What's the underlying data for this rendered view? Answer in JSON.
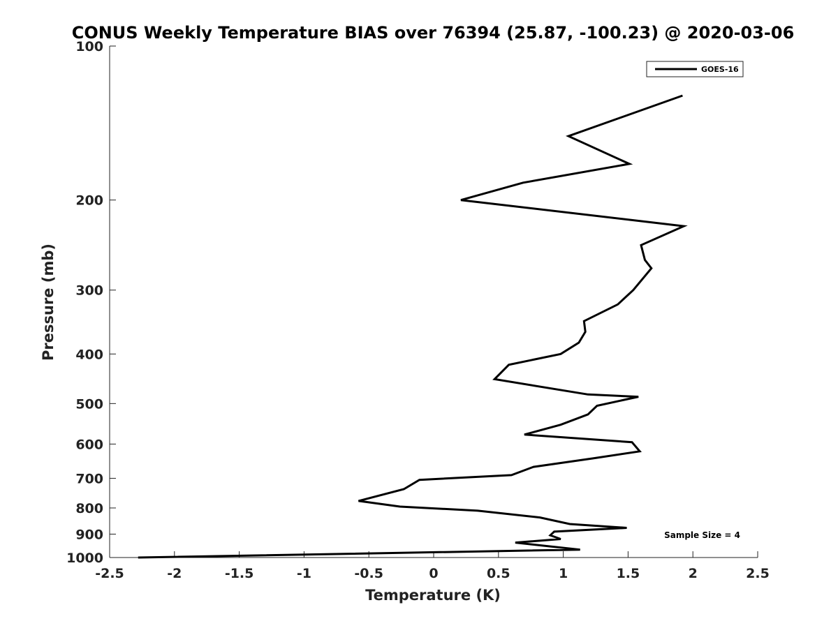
{
  "chart_data": {
    "type": "line",
    "title": "CONUS Weekly Temperature BIAS over 76394 (25.87, -100.23) @ 2020-03-06",
    "xlabel": "Temperature (K)",
    "ylabel": "Pressure (mb)",
    "xlim": [
      -2.5,
      2.5
    ],
    "ylim": [
      100,
      1000
    ],
    "y_scale": "log",
    "y_reversed": true,
    "x_ticks": [
      -2.5,
      -2,
      -1.5,
      -1,
      -0.5,
      0,
      0.5,
      1,
      1.5,
      2,
      2.5
    ],
    "x_tick_labels": [
      "-2.5",
      "-2",
      "-1.5",
      "-1",
      "-0.5",
      "0",
      "0.5",
      "1",
      "1.5",
      "2",
      "2.5"
    ],
    "y_ticks": [
      100,
      200,
      300,
      400,
      500,
      600,
      700,
      800,
      900,
      1000
    ],
    "y_tick_labels": [
      "100",
      "200",
      "300",
      "400",
      "500",
      "600",
      "700",
      "800",
      "900",
      "1000"
    ],
    "grid": false,
    "legend_position": "top-right",
    "series": [
      {
        "name": "GOES-16",
        "color": "#000000",
        "x": [
          1.92,
          1.04,
          1.51,
          0.69,
          0.21,
          1.93,
          1.6,
          1.63,
          1.68,
          1.54,
          1.42,
          1.16,
          1.17,
          1.12,
          0.98,
          0.58,
          0.47,
          1.19,
          1.58,
          1.26,
          1.19,
          0.98,
          0.7,
          1.53,
          1.59,
          1.23,
          0.77,
          0.6,
          -0.11,
          -0.23,
          -0.58,
          -0.26,
          0.34,
          0.82,
          1.05,
          1.49,
          0.93,
          0.9,
          0.98,
          0.63,
          1.13,
          -2.28
        ],
        "y": [
          125,
          150,
          170,
          185,
          200,
          225,
          245,
          262,
          272,
          300,
          320,
          345,
          362,
          380,
          400,
          420,
          448,
          480,
          485,
          505,
          525,
          550,
          575,
          595,
          620,
          640,
          665,
          690,
          705,
          735,
          775,
          795,
          810,
          835,
          860,
          875,
          890,
          905,
          920,
          935,
          965,
          1000
        ]
      }
    ],
    "annotations": [
      {
        "text": "Sample Size = 4",
        "anchor": "lower-right"
      }
    ]
  }
}
